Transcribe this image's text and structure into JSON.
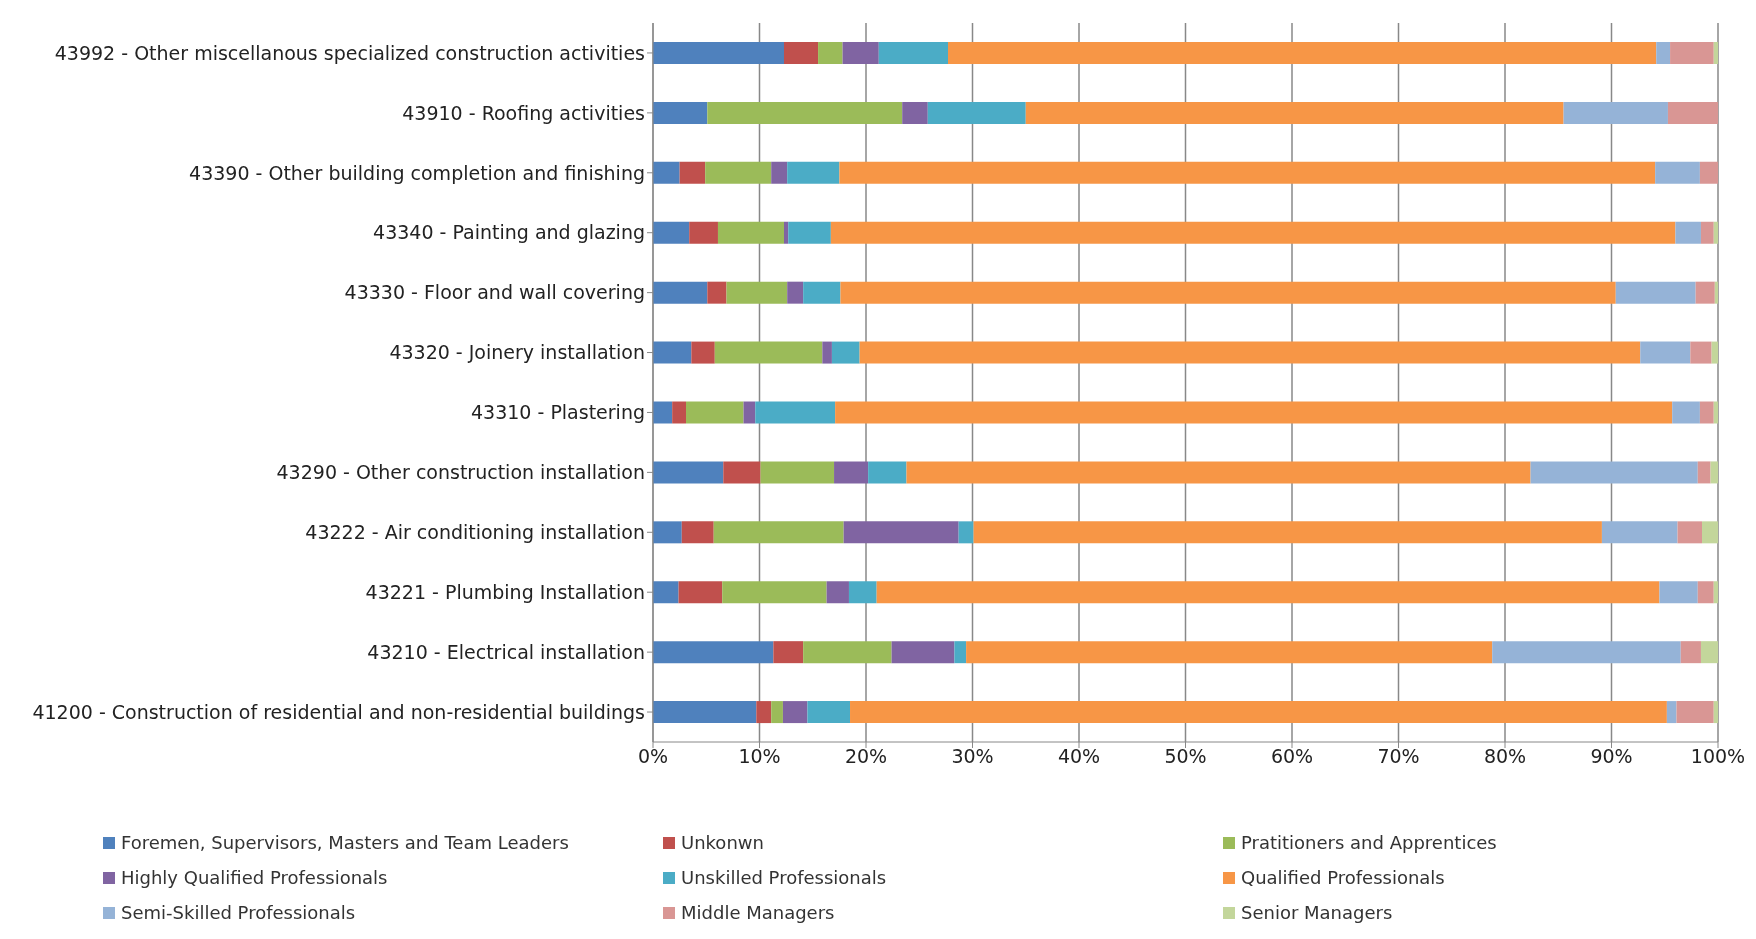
{
  "chart_data": {
    "type": "bar",
    "orientation": "horizontal",
    "stacked": true,
    "categories": [
      "43992 - Other miscellanous specialized construction activities",
      "43910 - Roofing activities",
      "43390 - Other building completion and finishing",
      "43340 - Painting and glazing",
      "43330 - Floor and wall covering",
      "43320 - Joinery installation",
      "43310 - Plastering",
      "43290 - Other construction installation",
      "43222 - Air conditioning installation",
      "43221 - Plumbing Installation",
      "43210 - Electrical installation",
      "41200 - Construction of residential and non-residential buildings"
    ],
    "series": [
      {
        "name": "Foremen, Supervisors, Masters and Team Leaders",
        "color": "#4f81bd",
        "values": [
          12.3,
          5.1,
          2.5,
          3.4,
          5.1,
          3.6,
          1.8,
          6.6,
          2.7,
          2.4,
          11.3,
          9.7
        ]
      },
      {
        "name": "Unkonwn",
        "color": "#c0504d",
        "values": [
          3.2,
          0,
          2.4,
          2.7,
          1.8,
          2.2,
          1.3,
          3.5,
          3.0,
          4.1,
          2.8,
          1.4
        ]
      },
      {
        "name": "Pratitioners and Apprentices",
        "color": "#9bbb59",
        "values": [
          2.3,
          18.3,
          6.2,
          6.2,
          5.7,
          10.1,
          5.4,
          6.9,
          12.2,
          9.8,
          8.3,
          1.1
        ]
      },
      {
        "name": "Highly Qualified Professionals",
        "color": "#8064a2",
        "values": [
          3.4,
          2.4,
          1.5,
          0.4,
          1.5,
          0.9,
          1.1,
          3.2,
          10.8,
          2.1,
          5.9,
          2.3
        ]
      },
      {
        "name": "Unskilled Professionals",
        "color": "#4bacc6",
        "values": [
          6.5,
          9.2,
          4.9,
          4.0,
          3.5,
          2.6,
          7.5,
          3.6,
          1.4,
          2.6,
          1.1,
          4.0
        ]
      },
      {
        "name": "Qualified Professionals",
        "color": "#f79646",
        "values": [
          66.5,
          50.5,
          76.6,
          79.3,
          72.8,
          73.3,
          78.6,
          58.6,
          59.0,
          73.5,
          49.4,
          76.7
        ]
      },
      {
        "name": "Semi-Skilled Professionals",
        "color": "#95b3d7",
        "values": [
          1.3,
          9.8,
          4.2,
          2.4,
          7.5,
          4.7,
          2.6,
          15.7,
          7.1,
          3.6,
          17.7,
          0.9
        ]
      },
      {
        "name": "Middle Managers",
        "color": "#d99694",
        "values": [
          4.1,
          4.7,
          1.7,
          1.2,
          1.8,
          2.0,
          1.3,
          1.2,
          2.3,
          1.5,
          1.9,
          3.5
        ]
      },
      {
        "name": "Senior Managers",
        "color": "#c3d69b",
        "values": [
          0.4,
          0,
          0,
          0.4,
          0.3,
          0.6,
          0.4,
          0.7,
          1.5,
          0.4,
          1.6,
          0.4
        ]
      }
    ],
    "xlim": [
      0,
      100
    ],
    "xticks": [
      {
        "value": 0,
        "label": "0%"
      },
      {
        "value": 10,
        "label": "10%"
      },
      {
        "value": 20,
        "label": "20%"
      },
      {
        "value": 30,
        "label": "30%"
      },
      {
        "value": 40,
        "label": "40%"
      },
      {
        "value": 50,
        "label": "50%"
      },
      {
        "value": 60,
        "label": "60%"
      },
      {
        "value": 70,
        "label": "70%"
      },
      {
        "value": 80,
        "label": "80%"
      },
      {
        "value": 90,
        "label": "90%"
      },
      {
        "value": 100,
        "label": "100%"
      }
    ],
    "grid": "x",
    "legend": "bottom"
  }
}
